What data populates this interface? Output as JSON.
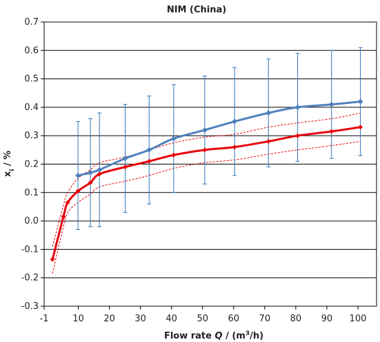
{
  "chart_data": {
    "type": "line",
    "title": "NIM (China)",
    "xlabel_parts": [
      "Flow rate ",
      "Q",
      " / (m",
      "3",
      "/h)"
    ],
    "ylabel_parts": [
      "x",
      "i",
      " / %"
    ],
    "xlim": [
      -1,
      106
    ],
    "ylim": [
      -0.3,
      0.7
    ],
    "xticks": [
      -1,
      10,
      20,
      30,
      40,
      50,
      60,
      70,
      80,
      90,
      100
    ],
    "yticks": [
      -0.3,
      -0.2,
      -0.1,
      0.0,
      0.1,
      0.2,
      0.3,
      0.4,
      0.5,
      0.6,
      0.7
    ],
    "ytick_labels": [
      "-0.3",
      "-0.2",
      "-0.1",
      "0.0",
      "0.1",
      "0.2",
      "0.3",
      "0.4",
      "0.5",
      "0.6",
      "0.7"
    ],
    "grid": "horizontal",
    "colors": {
      "blue": "#4f81bd",
      "errorbar": "#2e75b6",
      "red": "#e8000b",
      "grid": "#000000"
    },
    "blue_series": {
      "x": [
        9.9,
        13.9,
        16.8,
        25.1,
        32.8,
        40.7,
        50.7,
        60.3,
        71.2,
        80.6,
        91.5,
        100.8
      ],
      "y": [
        0.16,
        0.17,
        0.18,
        0.22,
        0.25,
        0.29,
        0.32,
        0.35,
        0.38,
        0.4,
        0.41,
        0.42
      ],
      "err_upper": [
        0.35,
        0.36,
        0.38,
        0.41,
        0.44,
        0.48,
        0.51,
        0.54,
        0.57,
        0.59,
        0.6,
        0.61
      ],
      "err_lower": [
        -0.03,
        -0.02,
        -0.02,
        0.03,
        0.06,
        0.1,
        0.13,
        0.16,
        0.19,
        0.21,
        0.22,
        0.23
      ]
    },
    "red_series": {
      "x": [
        1.7,
        5.2,
        6.6,
        9.9,
        13.9,
        16.8,
        25.1,
        32.8,
        40.7,
        50.7,
        60.3,
        71.2,
        80.6,
        91.5,
        100.8
      ],
      "y": [
        -0.135,
        0.015,
        0.065,
        0.105,
        0.135,
        0.165,
        0.19,
        0.21,
        0.232,
        0.25,
        0.26,
        0.28,
        0.3,
        0.315,
        0.33
      ]
    },
    "red_upper": {
      "x": [
        1.7,
        5.2,
        6.6,
        9.9,
        13.9,
        16.8,
        25.1,
        32.8,
        40.7,
        50.7,
        60.3,
        71.2,
        80.6,
        91.5,
        100.8
      ],
      "y": [
        -0.09,
        0.055,
        0.1,
        0.15,
        0.18,
        0.205,
        0.225,
        0.25,
        0.275,
        0.295,
        0.305,
        0.33,
        0.345,
        0.36,
        0.38
      ]
    },
    "red_lower": {
      "x": [
        1.7,
        5.2,
        6.6,
        9.9,
        13.9,
        16.8,
        25.1,
        32.8,
        40.7,
        50.7,
        60.3,
        71.2,
        80.6,
        91.5,
        100.8
      ],
      "y": [
        -0.185,
        -0.02,
        0.03,
        0.065,
        0.095,
        0.12,
        0.14,
        0.16,
        0.185,
        0.205,
        0.215,
        0.235,
        0.25,
        0.265,
        0.28
      ]
    }
  }
}
